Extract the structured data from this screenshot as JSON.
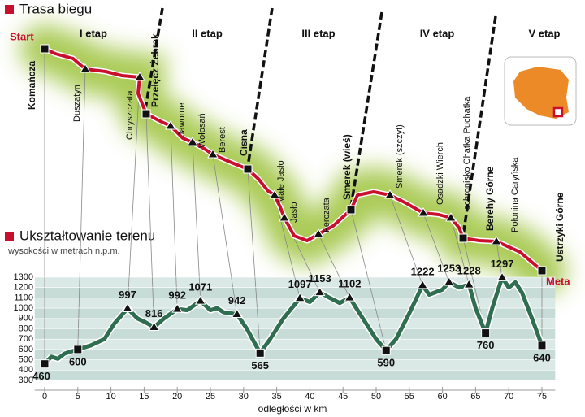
{
  "header": {
    "title": "Trasa biegu"
  },
  "route": {
    "start": "Start",
    "end": "Meta",
    "stages": [
      "I etap",
      "II etap",
      "III etap",
      "IV etap",
      "V etap"
    ],
    "places": [
      {
        "name": "Komańcza",
        "bold": true
      },
      {
        "name": "Duszatyn",
        "bold": false
      },
      {
        "name": "Chryszczata",
        "bold": false
      },
      {
        "name": "Przełęcz Żebrak",
        "bold": true
      },
      {
        "name": "Jaworne",
        "bold": false
      },
      {
        "name": "Wołosań",
        "bold": false
      },
      {
        "name": "Berest",
        "bold": false
      },
      {
        "name": "Cisna",
        "bold": true
      },
      {
        "name": "Małe Jasło",
        "bold": false
      },
      {
        "name": "Jasło",
        "bold": false
      },
      {
        "name": "Ferczata",
        "bold": false
      },
      {
        "name": "Smerek (wieś)",
        "bold": true
      },
      {
        "name": "Smerek (szczyt)",
        "bold": false
      },
      {
        "name": "Osadzki Wierch",
        "bold": false
      },
      {
        "name": "schronisko Chatka Puchatka",
        "bold": false
      },
      {
        "name": "Berehy Górne",
        "bold": true
      },
      {
        "name": "Połonina Caryńska",
        "bold": false
      },
      {
        "name": "Ustrzyki Górne",
        "bold": true
      }
    ]
  },
  "chart_data": {
    "type": "line",
    "title": "Ukształtowanie terenu",
    "y_label": "wysokości w metrach n.p.m.",
    "x_label": "odległości w km",
    "x": [
      0,
      1,
      2,
      3,
      5,
      7,
      9,
      10.5,
      12.5,
      14,
      15,
      16.5,
      18,
      20,
      21.5,
      23.5,
      25,
      26,
      27,
      29,
      30.5,
      32.5,
      34,
      36,
      38.5,
      40,
      41.5,
      43,
      44.5,
      46,
      48,
      50,
      51.5,
      53,
      55,
      57,
      58,
      60,
      61,
      62.5,
      64,
      65,
      66.5,
      67.5,
      69,
      70,
      71,
      72,
      73.5,
      75
    ],
    "values": [
      460,
      530,
      510,
      560,
      600,
      640,
      700,
      850,
      997,
      900,
      870,
      816,
      900,
      992,
      980,
      1071,
      980,
      1000,
      960,
      942,
      800,
      565,
      700,
      900,
      1097,
      1060,
      1153,
      1100,
      1050,
      1102,
      900,
      700,
      590,
      700,
      950,
      1222,
      1130,
      1180,
      1253,
      1200,
      1228,
      1000,
      760,
      1000,
      1297,
      1200,
      1250,
      1150,
      900,
      640
    ],
    "color": "#2f6e50",
    "points": {
      "x": [
        0,
        5,
        12.5,
        16.5,
        20,
        23.5,
        29,
        32.5,
        38.5,
        41.5,
        46,
        51.5,
        57,
        61,
        64,
        66.5,
        69,
        75
      ],
      "values": [
        460,
        600,
        997,
        816,
        992,
        1071,
        942,
        565,
        1097,
        1153,
        1102,
        590,
        1222,
        1253,
        1228,
        760,
        1297,
        640
      ],
      "markers": [
        "square",
        "square",
        "triangle",
        "triangle",
        "triangle",
        "triangle",
        "triangle",
        "square",
        "triangle",
        "triangle",
        "triangle",
        "square",
        "triangle",
        "triangle",
        "triangle",
        "square",
        "triangle",
        "square"
      ]
    },
    "xlim": [
      -1.5,
      77
    ],
    "xticks": [
      0,
      5,
      10,
      15,
      20,
      25,
      30,
      35,
      40,
      45,
      50,
      55,
      60,
      65,
      70,
      75
    ],
    "ylim": [
      300,
      1300
    ],
    "yticks": [
      300,
      400,
      500,
      600,
      700,
      800,
      900,
      1000,
      1100,
      1200,
      1300
    ]
  }
}
